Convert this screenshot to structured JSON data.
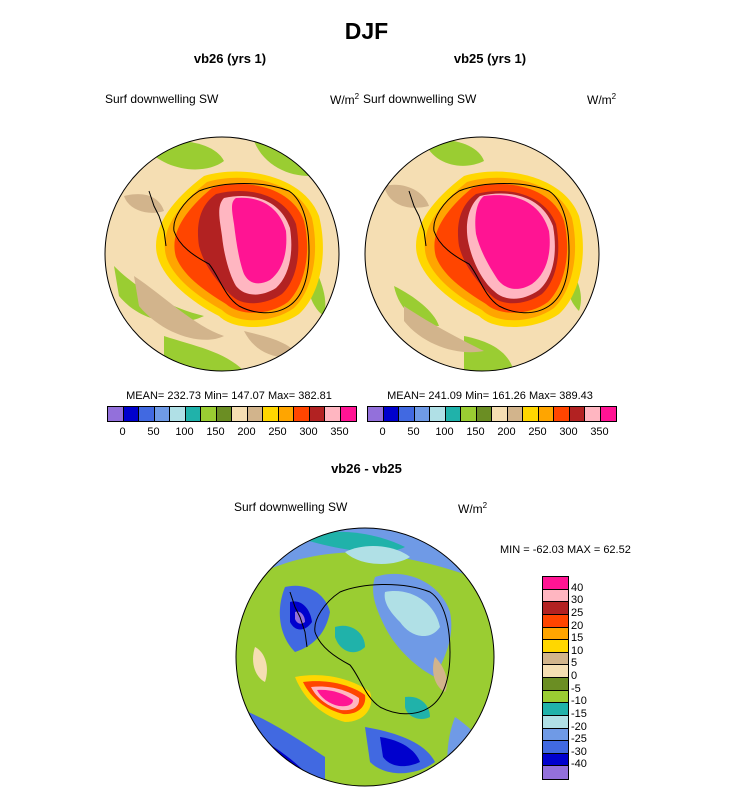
{
  "title": "DJF",
  "units_base": "W/m",
  "units_sup": "2",
  "palette_abs": [
    "#9370db",
    "#0000cd",
    "#4169e1",
    "#6f9ae6",
    "#b0e0e6",
    "#20b2aa",
    "#9acd32",
    "#6b8e23",
    "#f5deb3",
    "#d2b48c",
    "#ffd700",
    "#ffa500",
    "#ff4500",
    "#b22222",
    "#ffb6c1",
    "#ff1493"
  ],
  "palette_diff": [
    "#9370db",
    "#0000cd",
    "#4169e1",
    "#6f9ae6",
    "#b0e0e6",
    "#20b2aa",
    "#9acd32",
    "#6b8e23",
    "#f5deb3",
    "#d2b48c",
    "#ffd700",
    "#ffa500",
    "#ff4500",
    "#b22222",
    "#ffb6c1",
    "#ff1493"
  ],
  "panels": [
    {
      "subtitle": "vb26 (yrs 1)",
      "variable": "Surf downwelling SW",
      "stats": "MEAN= 232.73  Min= 147.07  Max= 382.81",
      "ticks": [
        "0",
        "50",
        "100",
        "150",
        "200",
        "250",
        "300",
        "350"
      ]
    },
    {
      "subtitle": "vb25 (yrs 1)",
      "variable": "Surf downwelling SW",
      "stats": "MEAN= 241.09  Min= 161.26  Max= 389.43",
      "ticks": [
        "0",
        "50",
        "100",
        "150",
        "200",
        "250",
        "300",
        "350"
      ]
    }
  ],
  "diff": {
    "subtitle": "vb26 - vb25",
    "variable": "Surf downwelling SW",
    "stats": "MIN = -62.03 MAX =  62.52",
    "levels": [
      "40",
      "30",
      "25",
      "20",
      "15",
      "10",
      "5",
      "0",
      "-5",
      "-10",
      "-15",
      "-20",
      "-25",
      "-30",
      "-40"
    ]
  },
  "chart_data": [
    {
      "type": "heatmap",
      "title": "vb26 (yrs 1)",
      "variable": "Surf downwelling SW",
      "units": "W/m2",
      "mean": 232.73,
      "min": 147.07,
      "max": 382.81,
      "colorbar_range": [
        0,
        350
      ],
      "colorbar_step": 25
    },
    {
      "type": "heatmap",
      "title": "vb25 (yrs 1)",
      "variable": "Surf downwelling SW",
      "units": "W/m2",
      "mean": 241.09,
      "min": 161.26,
      "max": 389.43,
      "colorbar_range": [
        0,
        350
      ],
      "colorbar_step": 25
    },
    {
      "type": "heatmap",
      "title": "vb26 - vb25",
      "variable": "Surf downwelling SW",
      "units": "W/m2",
      "min": -62.03,
      "max": 62.52,
      "colorbar_levels": [
        -40,
        -30,
        -25,
        -20,
        -15,
        -10,
        -5,
        0,
        5,
        10,
        15,
        20,
        25,
        30,
        40
      ]
    }
  ]
}
